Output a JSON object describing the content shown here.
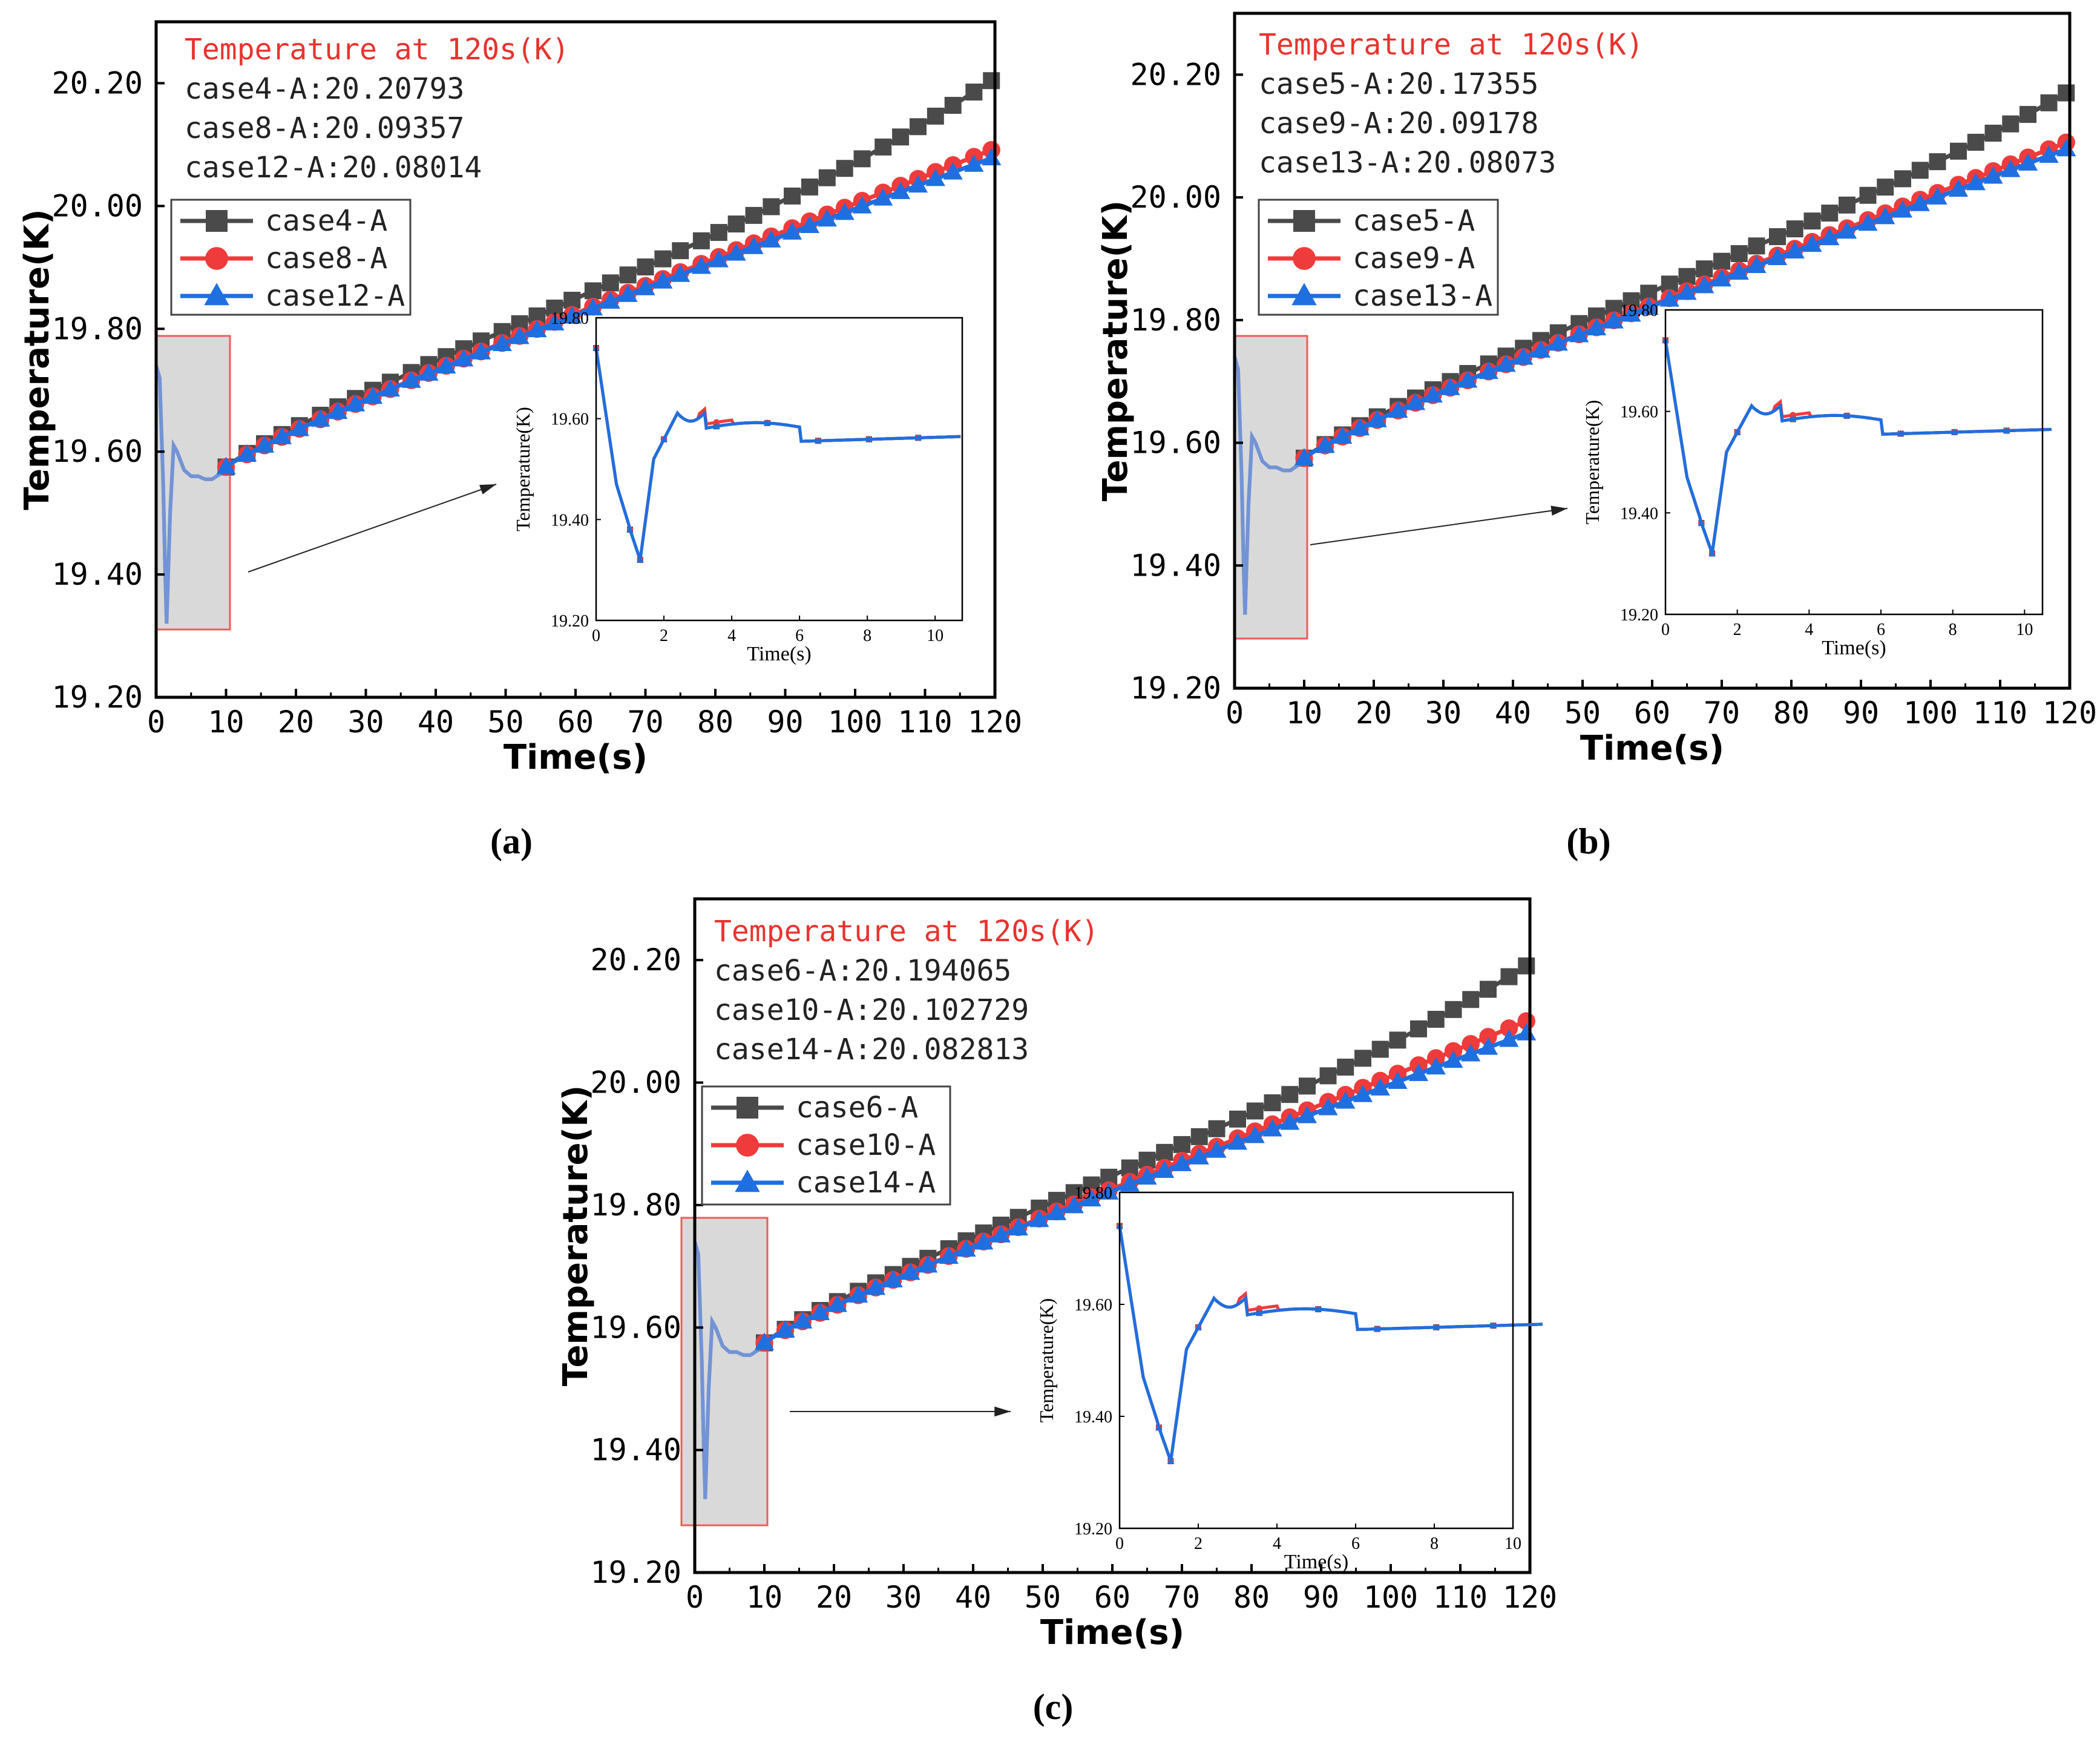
{
  "colors": {
    "case_dark": "#4a4a4a",
    "case_red": "#ef3b3b",
    "case_blue": "#1f6fe0",
    "annotation_red": "#e8332e",
    "highlight_fill": "#d9d9d9",
    "highlight_stroke": "#ef5b5b"
  },
  "chart_data": [
    {
      "id": "a",
      "type": "line",
      "caption": "(a)",
      "xlabel": "Time(s)",
      "ylabel": "Temperature(K)",
      "xlim": [
        0,
        120
      ],
      "ylim": [
        19.2,
        20.3
      ],
      "xticks": [
        "0",
        "10",
        "20",
        "30",
        "40",
        "50",
        "60",
        "70",
        "80",
        "90",
        "100",
        "110",
        "120"
      ],
      "yticks": [
        "19.20",
        "19.40",
        "19.60",
        "19.80",
        "20.00",
        "20.20"
      ],
      "annotation": {
        "title": "Temperature at 120s(K)",
        "lines": [
          "case4-A:20.20793",
          "case8-A:20.09357",
          "case12-A:20.08014"
        ]
      },
      "legend": [
        "case4-A",
        "case8-A",
        "case12-A"
      ],
      "series": [
        {
          "name": "case4-A",
          "marker": "square",
          "color": "#4a4a4a",
          "final": 20.20793
        },
        {
          "name": "case8-A",
          "marker": "circle",
          "color": "#ef3b3b",
          "final": 20.09357
        },
        {
          "name": "case12-A",
          "marker": "triangle",
          "color": "#1f6fe0",
          "final": 20.08014
        }
      ],
      "inset": {
        "xlabel": "Time(s)",
        "ylabel": "Temperature(K)",
        "xlim": [
          0,
          10.8
        ],
        "ylim": [
          19.2,
          19.8
        ],
        "xticks": [
          "0",
          "2",
          "4",
          "6",
          "8",
          "10"
        ],
        "yticks": [
          "19.20",
          "19.40",
          "19.60",
          "19.80"
        ]
      }
    },
    {
      "id": "b",
      "type": "line",
      "caption": "(b)",
      "xlabel": "Time(s)",
      "ylabel": "Temperature(K)",
      "xlim": [
        0,
        120
      ],
      "ylim": [
        19.2,
        20.3
      ],
      "xticks": [
        "0",
        "10",
        "20",
        "30",
        "40",
        "50",
        "60",
        "70",
        "80",
        "90",
        "100",
        "110",
        "120"
      ],
      "yticks": [
        "19.20",
        "19.40",
        "19.60",
        "19.80",
        "20.00",
        "20.20"
      ],
      "annotation": {
        "title": "Temperature at 120s(K)",
        "lines": [
          "case5-A:20.17355",
          "case9-A:20.09178",
          "case13-A:20.08073"
        ]
      },
      "legend": [
        "case5-A",
        "case9-A",
        "case13-A"
      ],
      "series": [
        {
          "name": "case5-A",
          "marker": "square",
          "color": "#4a4a4a",
          "final": 20.17355
        },
        {
          "name": "case9-A",
          "marker": "circle",
          "color": "#ef3b3b",
          "final": 20.09178
        },
        {
          "name": "case13-A",
          "marker": "triangle",
          "color": "#1f6fe0",
          "final": 20.08073
        }
      ],
      "inset": {
        "xlabel": "Time(s)",
        "ylabel": "Temperature(K)",
        "xlim": [
          0,
          10.5
        ],
        "ylim": [
          19.2,
          19.8
        ],
        "xticks": [
          "0",
          "2",
          "4",
          "6",
          "8",
          "10"
        ],
        "yticks": [
          "19.20",
          "19.40",
          "19.60",
          "19.80"
        ]
      }
    },
    {
      "id": "c",
      "type": "line",
      "caption": "(c)",
      "xlabel": "Time(s)",
      "ylabel": "Temperature(K)",
      "xlim": [
        0,
        120
      ],
      "ylim": [
        19.2,
        20.3
      ],
      "xticks": [
        "0",
        "10",
        "20",
        "30",
        "40",
        "50",
        "60",
        "70",
        "80",
        "90",
        "100",
        "110",
        "120"
      ],
      "yticks": [
        "19.20",
        "19.40",
        "19.60",
        "19.80",
        "20.00",
        "20.20"
      ],
      "annotation": {
        "title": "Temperature at 120s(K)",
        "lines": [
          "case6-A:20.194065",
          "case10-A:20.102729",
          "case14-A:20.082813"
        ]
      },
      "legend": [
        "case6-A",
        "case10-A",
        "case14-A"
      ],
      "series": [
        {
          "name": "case6-A",
          "marker": "square",
          "color": "#4a4a4a",
          "final": 20.194065
        },
        {
          "name": "case10-A",
          "marker": "circle",
          "color": "#ef3b3b",
          "final": 20.102729
        },
        {
          "name": "case14-A",
          "marker": "triangle",
          "color": "#1f6fe0",
          "final": 20.082813
        }
      ],
      "inset": {
        "xlabel": "Time(s)",
        "ylabel": "Temperature(K)",
        "xlim": [
          0,
          10
        ],
        "ylim": [
          19.2,
          19.8
        ],
        "xticks": [
          "0",
          "2",
          "4",
          "6",
          "8",
          "10"
        ],
        "yticks": [
          "19.20",
          "19.40",
          "19.60",
          "19.80"
        ]
      }
    }
  ]
}
